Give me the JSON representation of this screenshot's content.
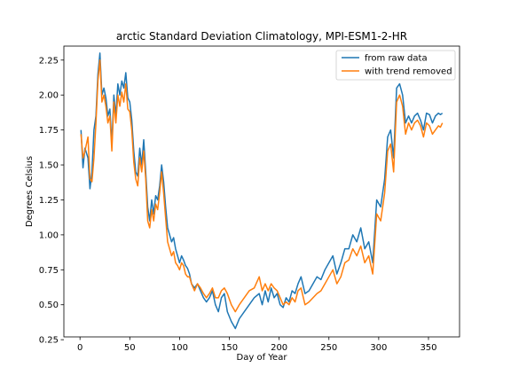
{
  "chart_data": {
    "type": "line",
    "title": "arctic Standard Deviation Climatology, MPI-ESM1-2-HR",
    "xlabel": "Day of Year",
    "ylabel": "Degrees Celsius",
    "xlim": [
      -16.2,
      381.2
    ],
    "ylim": [
      0.27,
      2.35
    ],
    "xticks": [
      0,
      50,
      100,
      150,
      200,
      250,
      300,
      350
    ],
    "yticks": [
      0.25,
      0.5,
      0.75,
      1.0,
      1.25,
      1.5,
      1.75,
      2.0,
      2.25
    ],
    "ytick_labels": [
      "0.25",
      "0.50",
      "0.75",
      "1.00",
      "1.25",
      "1.50",
      "1.75",
      "2.00",
      "2.25"
    ],
    "grid": false,
    "legend": "top-right",
    "series": [
      {
        "name": "from raw data",
        "color": "#1f77b4",
        "x": [
          1,
          3,
          5,
          8,
          10,
          12,
          14,
          16,
          18,
          20,
          22,
          24,
          26,
          28,
          30,
          32,
          34,
          36,
          38,
          40,
          42,
          44,
          46,
          48,
          50,
          52,
          54,
          56,
          58,
          60,
          62,
          64,
          66,
          68,
          70,
          72,
          74,
          76,
          78,
          80,
          82,
          84,
          86,
          88,
          90,
          92,
          94,
          96,
          98,
          100,
          102,
          104,
          106,
          108,
          110,
          112,
          115,
          118,
          121,
          124,
          127,
          130,
          133,
          136,
          139,
          142,
          145,
          148,
          152,
          156,
          160,
          165,
          170,
          175,
          180,
          183,
          186,
          189,
          192,
          195,
          198,
          201,
          204,
          207,
          210,
          213,
          216,
          219,
          222,
          226,
          230,
          234,
          238,
          242,
          246,
          250,
          254,
          258,
          262,
          266,
          270,
          274,
          278,
          282,
          286,
          290,
          294,
          298,
          302,
          306,
          309,
          312,
          315,
          318,
          321,
          324,
          327,
          330,
          333,
          336,
          339,
          342,
          345,
          348,
          351,
          354,
          357,
          360,
          362,
          364
        ],
        "y": [
          1.75,
          1.48,
          1.62,
          1.55,
          1.33,
          1.45,
          1.75,
          1.85,
          2.15,
          2.3,
          2.0,
          2.05,
          1.98,
          1.85,
          1.9,
          1.65,
          2.0,
          1.85,
          2.08,
          2.0,
          2.1,
          2.05,
          2.16,
          1.98,
          1.95,
          1.82,
          1.6,
          1.45,
          1.42,
          1.62,
          1.5,
          1.68,
          1.45,
          1.2,
          1.1,
          1.25,
          1.15,
          1.28,
          1.25,
          1.35,
          1.5,
          1.38,
          1.2,
          1.05,
          1.0,
          0.95,
          0.98,
          0.9,
          0.85,
          0.8,
          0.85,
          0.82,
          0.78,
          0.76,
          0.72,
          0.65,
          0.62,
          0.65,
          0.6,
          0.55,
          0.52,
          0.55,
          0.6,
          0.5,
          0.45,
          0.55,
          0.58,
          0.45,
          0.38,
          0.33,
          0.4,
          0.45,
          0.5,
          0.55,
          0.58,
          0.5,
          0.6,
          0.52,
          0.62,
          0.55,
          0.58,
          0.5,
          0.48,
          0.55,
          0.52,
          0.6,
          0.58,
          0.65,
          0.7,
          0.58,
          0.6,
          0.65,
          0.7,
          0.68,
          0.75,
          0.8,
          0.85,
          0.72,
          0.8,
          0.9,
          0.9,
          1.0,
          0.95,
          1.05,
          0.9,
          0.95,
          0.8,
          1.25,
          1.2,
          1.4,
          1.7,
          1.75,
          1.55,
          2.05,
          2.08,
          2.0,
          1.8,
          1.85,
          1.8,
          1.85,
          1.87,
          1.82,
          1.75,
          1.87,
          1.86,
          1.8,
          1.85,
          1.87,
          1.86,
          1.87
        ]
      },
      {
        "name": "with trend removed",
        "color": "#ff7f0e",
        "x": [
          1,
          3,
          5,
          8,
          10,
          12,
          14,
          16,
          18,
          20,
          22,
          24,
          26,
          28,
          30,
          32,
          34,
          36,
          38,
          40,
          42,
          44,
          46,
          48,
          50,
          52,
          54,
          56,
          58,
          60,
          62,
          64,
          66,
          68,
          70,
          72,
          74,
          76,
          78,
          80,
          82,
          84,
          86,
          88,
          90,
          92,
          94,
          96,
          98,
          100,
          102,
          104,
          106,
          108,
          110,
          112,
          115,
          118,
          121,
          124,
          127,
          130,
          133,
          136,
          139,
          142,
          145,
          148,
          152,
          156,
          160,
          165,
          170,
          175,
          180,
          183,
          186,
          189,
          192,
          195,
          198,
          201,
          204,
          207,
          210,
          213,
          216,
          219,
          222,
          226,
          230,
          234,
          238,
          242,
          246,
          250,
          254,
          258,
          262,
          266,
          270,
          274,
          278,
          282,
          286,
          290,
          294,
          298,
          302,
          306,
          309,
          312,
          315,
          318,
          321,
          324,
          327,
          330,
          333,
          336,
          339,
          342,
          345,
          348,
          351,
          354,
          357,
          360,
          362,
          364
        ],
        "y": [
          1.72,
          1.55,
          1.6,
          1.7,
          1.4,
          1.38,
          1.55,
          1.8,
          2.1,
          2.25,
          1.95,
          2.0,
          1.92,
          1.8,
          1.85,
          1.6,
          1.95,
          1.8,
          2.0,
          1.92,
          2.02,
          1.95,
          2.08,
          1.9,
          1.88,
          1.75,
          1.52,
          1.4,
          1.35,
          1.55,
          1.45,
          1.6,
          1.4,
          1.1,
          1.05,
          1.18,
          1.1,
          1.22,
          1.18,
          1.3,
          1.45,
          1.3,
          1.12,
          0.95,
          0.9,
          0.85,
          0.88,
          0.8,
          0.78,
          0.75,
          0.8,
          0.78,
          0.72,
          0.7,
          0.7,
          0.65,
          0.6,
          0.65,
          0.62,
          0.58,
          0.55,
          0.58,
          0.62,
          0.55,
          0.55,
          0.6,
          0.62,
          0.58,
          0.5,
          0.45,
          0.5,
          0.55,
          0.6,
          0.62,
          0.7,
          0.6,
          0.65,
          0.6,
          0.65,
          0.62,
          0.6,
          0.55,
          0.5,
          0.52,
          0.5,
          0.55,
          0.52,
          0.6,
          0.62,
          0.5,
          0.52,
          0.55,
          0.58,
          0.6,
          0.65,
          0.7,
          0.75,
          0.65,
          0.7,
          0.8,
          0.82,
          0.9,
          0.85,
          0.92,
          0.8,
          0.85,
          0.72,
          1.15,
          1.1,
          1.3,
          1.6,
          1.65,
          1.45,
          1.95,
          2.0,
          1.92,
          1.72,
          1.8,
          1.75,
          1.8,
          1.82,
          1.78,
          1.7,
          1.8,
          1.78,
          1.72,
          1.75,
          1.78,
          1.77,
          1.8
        ]
      }
    ]
  }
}
